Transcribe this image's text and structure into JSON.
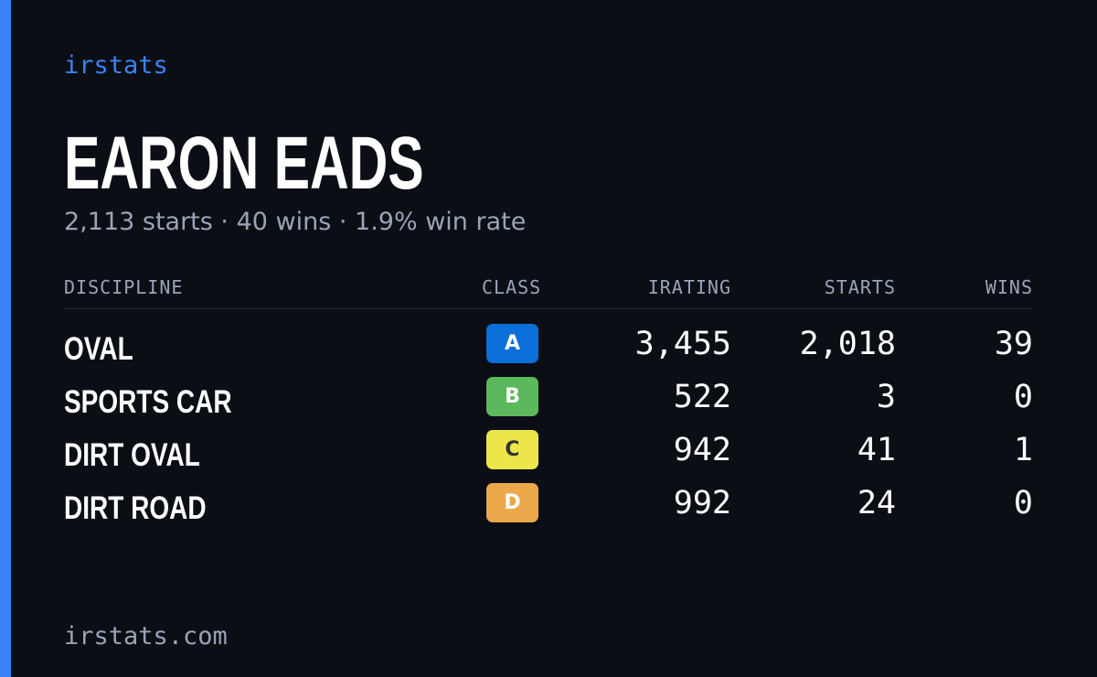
{
  "brand": "irstats",
  "player": {
    "name": "EARON EADS",
    "summary": "2,113 starts · 40 wins · 1.9% win rate"
  },
  "table": {
    "headers": {
      "discipline": "DISCIPLINE",
      "class": "CLASS",
      "irating": "IRATING",
      "starts": "STARTS",
      "wins": "WINS"
    },
    "rows": [
      {
        "discipline": "OVAL",
        "class": "A",
        "class_color": "#0a6fd8",
        "class_text_color": "#ffffff",
        "irating": "3,455",
        "starts": "2,018",
        "wins": "39"
      },
      {
        "discipline": "SPORTS CAR",
        "class": "B",
        "class_color": "#5cb85c",
        "class_text_color": "#ffffff",
        "irating": "522",
        "starts": "3",
        "wins": "0"
      },
      {
        "discipline": "DIRT OVAL",
        "class": "C",
        "class_color": "#ede64b",
        "class_text_color": "#333333",
        "irating": "942",
        "starts": "41",
        "wins": "1"
      },
      {
        "discipline": "DIRT ROAD",
        "class": "D",
        "class_color": "#eaa84a",
        "class_text_color": "#ffffff",
        "irating": "992",
        "starts": "24",
        "wins": "0"
      }
    ]
  },
  "footer": "irstats.com",
  "colors": {
    "background": "#0b0e15",
    "accent": "#3b82f6",
    "muted_text": "#9aa4b6"
  }
}
